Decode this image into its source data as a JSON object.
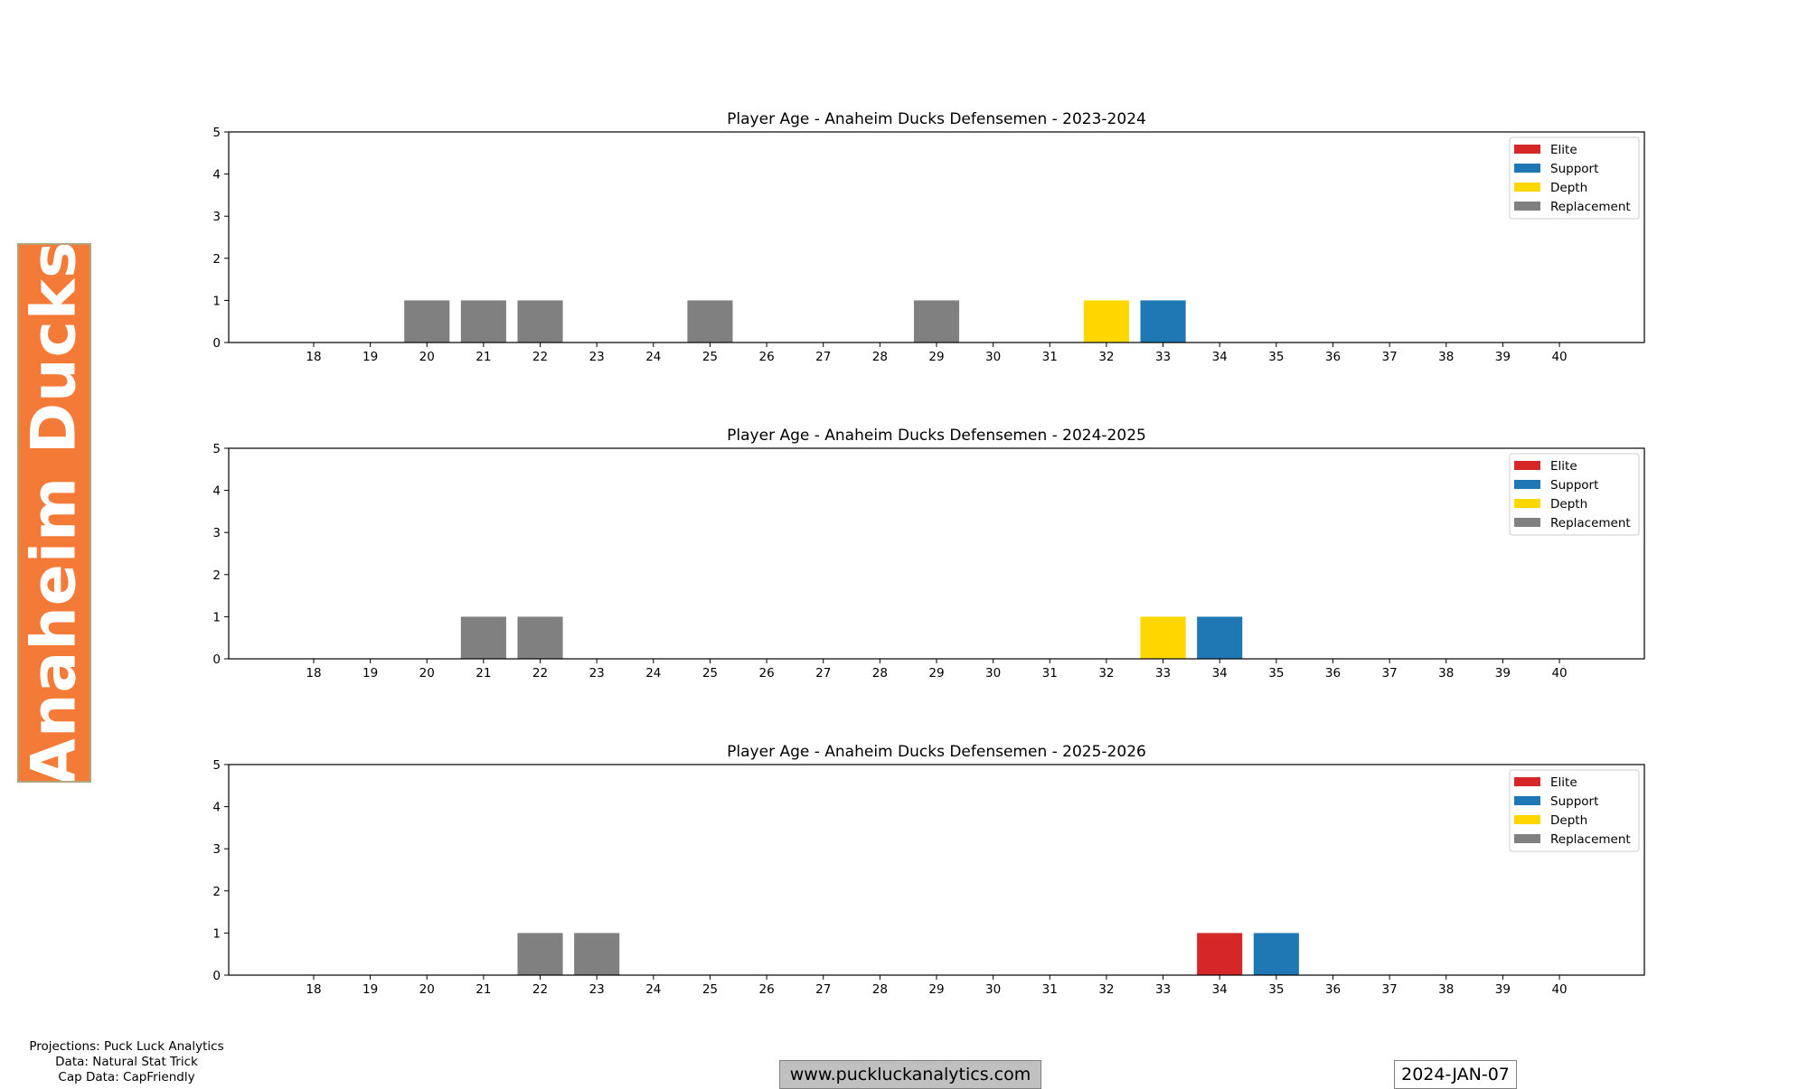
{
  "team_label": "Anaheim Ducks",
  "legend": [
    {
      "name": "Elite",
      "color": "#D62728"
    },
    {
      "name": "Support",
      "color": "#1F77B4"
    },
    {
      "name": "Depth",
      "color": "#FFD700"
    },
    {
      "name": "Replacement",
      "color": "#808080"
    }
  ],
  "footer": {
    "credits": [
      "Projections: Puck Luck Analytics",
      "Data: Natural Stat Trick",
      "Cap Data: CapFriendly"
    ],
    "website": "www.puckluckanalytics.com",
    "date": "2024-JAN-07"
  },
  "chart_data": [
    {
      "type": "bar",
      "title": "Player Age - Anaheim Ducks Defensemen - 2023-2024",
      "xlim": [
        16.5,
        41.5
      ],
      "ylim": [
        0,
        5
      ],
      "x_ticks": [
        18,
        19,
        20,
        21,
        22,
        23,
        24,
        25,
        26,
        27,
        28,
        29,
        30,
        31,
        32,
        33,
        34,
        35,
        36,
        37,
        38,
        39,
        40
      ],
      "y_ticks": [
        0,
        1,
        2,
        3,
        4,
        5
      ],
      "legend_position": "top-right",
      "grid": false,
      "bars": [
        {
          "age": 20,
          "count": 1,
          "tier": "Replacement"
        },
        {
          "age": 21,
          "count": 1,
          "tier": "Replacement"
        },
        {
          "age": 22,
          "count": 1,
          "tier": "Replacement"
        },
        {
          "age": 25,
          "count": 1,
          "tier": "Replacement"
        },
        {
          "age": 29,
          "count": 1,
          "tier": "Replacement"
        },
        {
          "age": 32,
          "count": 1,
          "tier": "Depth"
        },
        {
          "age": 33,
          "count": 1,
          "tier": "Support"
        }
      ]
    },
    {
      "type": "bar",
      "title": "Player Age - Anaheim Ducks Defensemen - 2024-2025",
      "xlim": [
        16.5,
        41.5
      ],
      "ylim": [
        0,
        5
      ],
      "x_ticks": [
        18,
        19,
        20,
        21,
        22,
        23,
        24,
        25,
        26,
        27,
        28,
        29,
        30,
        31,
        32,
        33,
        34,
        35,
        36,
        37,
        38,
        39,
        40
      ],
      "y_ticks": [
        0,
        1,
        2,
        3,
        4,
        5
      ],
      "legend_position": "top-right",
      "grid": false,
      "bars": [
        {
          "age": 21,
          "count": 1,
          "tier": "Replacement"
        },
        {
          "age": 22,
          "count": 1,
          "tier": "Replacement"
        },
        {
          "age": 33,
          "count": 1,
          "tier": "Depth"
        },
        {
          "age": 34,
          "count": 1,
          "tier": "Support"
        }
      ]
    },
    {
      "type": "bar",
      "title": "Player Age - Anaheim Ducks Defensemen - 2025-2026",
      "xlim": [
        16.5,
        41.5
      ],
      "ylim": [
        0,
        5
      ],
      "x_ticks": [
        18,
        19,
        20,
        21,
        22,
        23,
        24,
        25,
        26,
        27,
        28,
        29,
        30,
        31,
        32,
        33,
        34,
        35,
        36,
        37,
        38,
        39,
        40
      ],
      "y_ticks": [
        0,
        1,
        2,
        3,
        4,
        5
      ],
      "legend_position": "top-right",
      "grid": false,
      "bars": [
        {
          "age": 22,
          "count": 1,
          "tier": "Replacement"
        },
        {
          "age": 23,
          "count": 1,
          "tier": "Replacement"
        },
        {
          "age": 34,
          "count": 1,
          "tier": "Elite"
        },
        {
          "age": 35,
          "count": 1,
          "tier": "Support"
        }
      ]
    }
  ]
}
